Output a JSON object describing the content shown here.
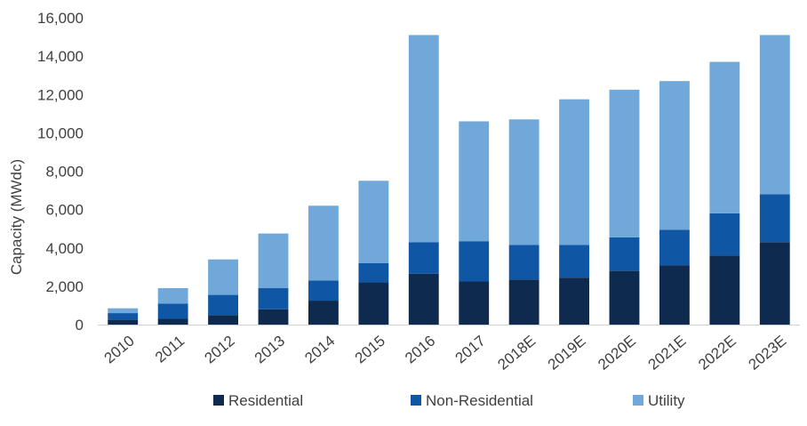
{
  "chart_data": {
    "type": "bar",
    "stacked": true,
    "title": "",
    "xlabel": "",
    "ylabel": "Capacity (MWdc)",
    "ylim": [
      0,
      16000
    ],
    "yticks": [
      "0",
      "2,000",
      "4,000",
      "6,000",
      "8,000",
      "10,000",
      "12,000",
      "14,000",
      "16,000"
    ],
    "grid": false,
    "legend_position": "bottom",
    "categories": [
      "2010",
      "2011",
      "2012",
      "2013",
      "2014",
      "2015",
      "2016",
      "2017",
      "2018E",
      "2019E",
      "2020E",
      "2021E",
      "2022E",
      "2023E"
    ],
    "series": [
      {
        "name": "Residential",
        "color": "#0e2a4f",
        "values": [
          250,
          300,
          500,
          800,
          1250,
          2200,
          2650,
          2250,
          2350,
          2450,
          2800,
          3100,
          3600,
          4300
        ]
      },
      {
        "name": "Non-Residential",
        "color": "#0f56a4",
        "values": [
          350,
          800,
          1050,
          1100,
          1050,
          1000,
          1650,
          2100,
          1800,
          1700,
          1750,
          1850,
          2200,
          2500
        ]
      },
      {
        "name": "Utility",
        "color": "#6fa8d9",
        "values": [
          250,
          800,
          1850,
          2850,
          3900,
          4300,
          10800,
          6250,
          6550,
          7600,
          7700,
          7750,
          7900,
          8300
        ]
      }
    ]
  }
}
